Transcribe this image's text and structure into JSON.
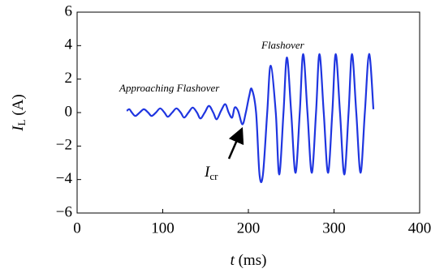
{
  "chart_data": {
    "type": "line",
    "xlabel": {
      "var": "t",
      "unit": "(ms)"
    },
    "ylabel": {
      "var": "I",
      "sub": "L",
      "unit": "(A)"
    },
    "annotations": [
      {
        "text": "Approaching Flashover"
      },
      {
        "text": "Flashover"
      },
      {
        "var": "I",
        "sub": "cr"
      }
    ],
    "x": [
      58,
      61,
      64,
      68,
      73,
      78,
      83,
      87,
      92,
      97,
      102,
      106,
      111,
      116,
      121,
      125,
      130,
      135,
      140,
      144,
      149,
      154,
      159,
      163,
      168,
      173,
      177,
      181,
      184,
      188,
      193,
      197,
      201,
      204,
      209,
      213,
      217,
      222,
      226,
      232,
      236,
      241,
      245,
      250,
      255,
      260,
      264,
      269,
      274,
      279,
      283,
      288,
      293,
      298,
      302,
      307,
      312,
      317,
      321,
      326,
      331,
      336,
      341,
      346
    ],
    "values": [
      0.1,
      0.2,
      0.0,
      -0.2,
      0.0,
      0.2,
      0.0,
      -0.2,
      0.0,
      0.25,
      0.0,
      -0.25,
      0.0,
      0.25,
      0.0,
      -0.3,
      0.0,
      0.3,
      0.0,
      -0.35,
      0.0,
      0.4,
      0.0,
      -0.4,
      0.1,
      0.5,
      0.0,
      -0.3,
      0.3,
      0.1,
      -0.7,
      0.0,
      1.0,
      1.4,
      0.0,
      -3.7,
      -3.7,
      0.0,
      2.8,
      0.0,
      -3.7,
      0.0,
      3.3,
      0.0,
      -3.6,
      0.0,
      3.5,
      0.0,
      -3.6,
      0.0,
      3.5,
      0.0,
      -3.6,
      0.0,
      3.5,
      0.0,
      -3.7,
      0.0,
      3.5,
      0.0,
      -3.6,
      0.0,
      3.5,
      0.2
    ],
    "color": "#1f35e0",
    "xlim": [
      0,
      400
    ],
    "xticks": [
      0,
      100,
      200,
      300,
      400
    ],
    "ylim": [
      -6,
      6
    ],
    "yticks": [
      {
        "value": -6,
        "label": "−6"
      },
      {
        "value": -4,
        "label": "−4"
      },
      {
        "value": -2,
        "label": "−2"
      },
      0,
      2,
      4,
      6
    ]
  }
}
